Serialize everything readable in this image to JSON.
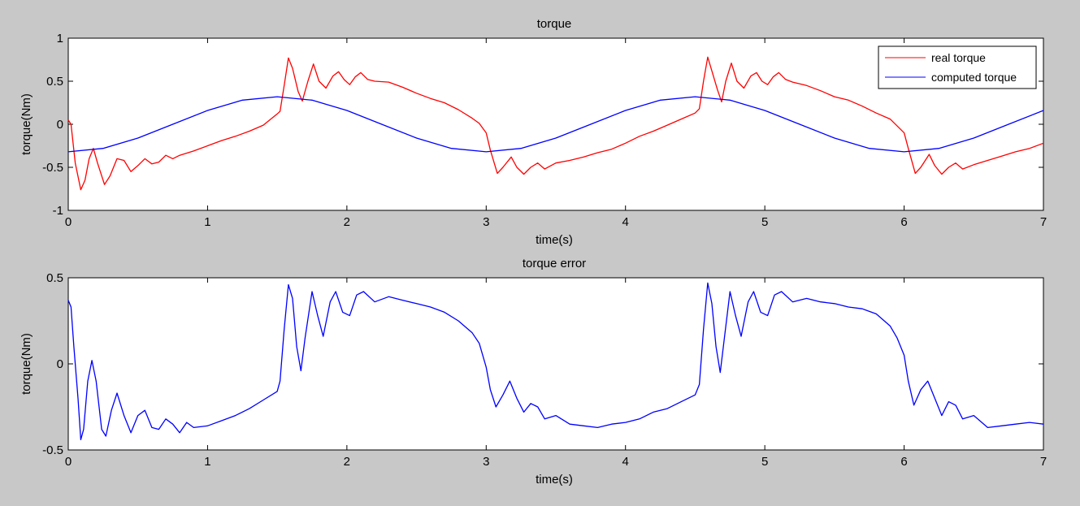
{
  "figure": {
    "background": "#c8c8c8"
  },
  "chart_data": [
    {
      "type": "line",
      "title": "torque",
      "xlabel": "time(s)",
      "ylabel": "torque(Nm)",
      "xlim": [
        0,
        7
      ],
      "ylim": [
        -1,
        1
      ],
      "xticks": [
        0,
        1,
        2,
        3,
        4,
        5,
        6,
        7
      ],
      "yticks": [
        -1,
        -0.5,
        0,
        0.5,
        1
      ],
      "xtick_labels": [
        "0",
        "1",
        "2",
        "3",
        "4",
        "5",
        "6",
        "7"
      ],
      "ytick_labels": [
        "-1",
        "-0.5",
        "0",
        "0.5",
        "1"
      ],
      "grid": false,
      "legend_position": "top-right",
      "series": [
        {
          "name": "real torque",
          "color": "#ff0000",
          "points": [
            [
              0,
              0.05
            ],
            [
              0.02,
              0.0
            ],
            [
              0.05,
              -0.45
            ],
            [
              0.09,
              -0.76
            ],
            [
              0.12,
              -0.65
            ],
            [
              0.15,
              -0.4
            ],
            [
              0.18,
              -0.28
            ],
            [
              0.21,
              -0.45
            ],
            [
              0.26,
              -0.7
            ],
            [
              0.3,
              -0.6
            ],
            [
              0.35,
              -0.4
            ],
            [
              0.4,
              -0.42
            ],
            [
              0.45,
              -0.55
            ],
            [
              0.5,
              -0.48
            ],
            [
              0.55,
              -0.4
            ],
            [
              0.6,
              -0.46
            ],
            [
              0.65,
              -0.44
            ],
            [
              0.7,
              -0.36
            ],
            [
              0.75,
              -0.4
            ],
            [
              0.8,
              -0.36
            ],
            [
              0.9,
              -0.31
            ],
            [
              1.0,
              -0.25
            ],
            [
              1.1,
              -0.19
            ],
            [
              1.2,
              -0.14
            ],
            [
              1.3,
              -0.08
            ],
            [
              1.4,
              -0.01
            ],
            [
              1.5,
              0.12
            ],
            [
              1.52,
              0.15
            ],
            [
              1.55,
              0.45
            ],
            [
              1.58,
              0.77
            ],
            [
              1.61,
              0.65
            ],
            [
              1.65,
              0.38
            ],
            [
              1.68,
              0.27
            ],
            [
              1.72,
              0.5
            ],
            [
              1.76,
              0.7
            ],
            [
              1.8,
              0.5
            ],
            [
              1.85,
              0.42
            ],
            [
              1.9,
              0.56
            ],
            [
              1.94,
              0.61
            ],
            [
              1.98,
              0.52
            ],
            [
              2.02,
              0.46
            ],
            [
              2.06,
              0.55
            ],
            [
              2.1,
              0.6
            ],
            [
              2.15,
              0.52
            ],
            [
              2.2,
              0.5
            ],
            [
              2.3,
              0.49
            ],
            [
              2.4,
              0.43
            ],
            [
              2.5,
              0.36
            ],
            [
              2.6,
              0.3
            ],
            [
              2.7,
              0.25
            ],
            [
              2.8,
              0.17
            ],
            [
              2.9,
              0.07
            ],
            [
              2.95,
              0.01
            ],
            [
              3.0,
              -0.1
            ],
            [
              3.03,
              -0.3
            ],
            [
              3.08,
              -0.57
            ],
            [
              3.12,
              -0.5
            ],
            [
              3.18,
              -0.38
            ],
            [
              3.22,
              -0.5
            ],
            [
              3.27,
              -0.58
            ],
            [
              3.32,
              -0.5
            ],
            [
              3.37,
              -0.45
            ],
            [
              3.42,
              -0.52
            ],
            [
              3.5,
              -0.45
            ],
            [
              3.6,
              -0.42
            ],
            [
              3.7,
              -0.38
            ],
            [
              3.8,
              -0.33
            ],
            [
              3.9,
              -0.29
            ],
            [
              4.0,
              -0.22
            ],
            [
              4.1,
              -0.14
            ],
            [
              4.2,
              -0.08
            ],
            [
              4.3,
              -0.01
            ],
            [
              4.4,
              0.06
            ],
            [
              4.5,
              0.13
            ],
            [
              4.53,
              0.18
            ],
            [
              4.56,
              0.5
            ],
            [
              4.59,
              0.78
            ],
            [
              4.62,
              0.62
            ],
            [
              4.66,
              0.4
            ],
            [
              4.69,
              0.26
            ],
            [
              4.72,
              0.5
            ],
            [
              4.76,
              0.71
            ],
            [
              4.8,
              0.5
            ],
            [
              4.85,
              0.42
            ],
            [
              4.9,
              0.56
            ],
            [
              4.94,
              0.6
            ],
            [
              4.98,
              0.5
            ],
            [
              5.02,
              0.46
            ],
            [
              5.06,
              0.55
            ],
            [
              5.1,
              0.6
            ],
            [
              5.15,
              0.52
            ],
            [
              5.2,
              0.49
            ],
            [
              5.3,
              0.45
            ],
            [
              5.4,
              0.39
            ],
            [
              5.5,
              0.32
            ],
            [
              5.6,
              0.28
            ],
            [
              5.7,
              0.21
            ],
            [
              5.8,
              0.13
            ],
            [
              5.9,
              0.06
            ],
            [
              5.95,
              -0.02
            ],
            [
              6.0,
              -0.1
            ],
            [
              6.03,
              -0.28
            ],
            [
              6.08,
              -0.57
            ],
            [
              6.12,
              -0.5
            ],
            [
              6.18,
              -0.35
            ],
            [
              6.22,
              -0.48
            ],
            [
              6.27,
              -0.58
            ],
            [
              6.32,
              -0.5
            ],
            [
              6.37,
              -0.45
            ],
            [
              6.42,
              -0.52
            ],
            [
              6.5,
              -0.47
            ],
            [
              6.6,
              -0.42
            ],
            [
              6.7,
              -0.37
            ],
            [
              6.8,
              -0.32
            ],
            [
              6.9,
              -0.28
            ],
            [
              7.0,
              -0.22
            ]
          ]
        },
        {
          "name": "computed torque",
          "color": "#0000ff",
          "points": [
            [
              0,
              -0.32
            ],
            [
              0.25,
              -0.28
            ],
            [
              0.5,
              -0.16
            ],
            [
              0.75,
              0.0
            ],
            [
              1.0,
              0.16
            ],
            [
              1.25,
              0.28
            ],
            [
              1.5,
              0.32
            ],
            [
              1.75,
              0.28
            ],
            [
              2.0,
              0.16
            ],
            [
              2.25,
              0.0
            ],
            [
              2.5,
              -0.16
            ],
            [
              2.75,
              -0.28
            ],
            [
              3.0,
              -0.32
            ],
            [
              3.25,
              -0.28
            ],
            [
              3.5,
              -0.16
            ],
            [
              3.75,
              0.0
            ],
            [
              4.0,
              0.16
            ],
            [
              4.25,
              0.28
            ],
            [
              4.5,
              0.32
            ],
            [
              4.75,
              0.28
            ],
            [
              5.0,
              0.16
            ],
            [
              5.25,
              0.0
            ],
            [
              5.5,
              -0.16
            ],
            [
              5.75,
              -0.28
            ],
            [
              6.0,
              -0.32
            ],
            [
              6.25,
              -0.28
            ],
            [
              6.5,
              -0.16
            ],
            [
              6.75,
              0.0
            ],
            [
              7.0,
              0.16
            ]
          ]
        }
      ]
    },
    {
      "type": "line",
      "title": "torque error",
      "xlabel": "time(s)",
      "ylabel": "torque(Nm)",
      "xlim": [
        0,
        7
      ],
      "ylim": [
        -0.5,
        0.5
      ],
      "xticks": [
        0,
        1,
        2,
        3,
        4,
        5,
        6,
        7
      ],
      "yticks": [
        -0.5,
        0,
        0.5
      ],
      "xtick_labels": [
        "0",
        "1",
        "2",
        "3",
        "4",
        "5",
        "6",
        "7"
      ],
      "ytick_labels": [
        "-0.5",
        "0",
        "0.5"
      ],
      "grid": false,
      "series": [
        {
          "color": "#0000ff",
          "points": [
            [
              0,
              0.37
            ],
            [
              0.02,
              0.33
            ],
            [
              0.04,
              0.1
            ],
            [
              0.07,
              -0.2
            ],
            [
              0.09,
              -0.44
            ],
            [
              0.11,
              -0.38
            ],
            [
              0.14,
              -0.1
            ],
            [
              0.17,
              0.02
            ],
            [
              0.2,
              -0.1
            ],
            [
              0.24,
              -0.38
            ],
            [
              0.27,
              -0.42
            ],
            [
              0.31,
              -0.27
            ],
            [
              0.35,
              -0.17
            ],
            [
              0.4,
              -0.3
            ],
            [
              0.45,
              -0.4
            ],
            [
              0.5,
              -0.3
            ],
            [
              0.55,
              -0.27
            ],
            [
              0.6,
              -0.37
            ],
            [
              0.65,
              -0.38
            ],
            [
              0.7,
              -0.32
            ],
            [
              0.75,
              -0.35
            ],
            [
              0.8,
              -0.4
            ],
            [
              0.85,
              -0.34
            ],
            [
              0.9,
              -0.37
            ],
            [
              1.0,
              -0.36
            ],
            [
              1.1,
              -0.33
            ],
            [
              1.2,
              -0.3
            ],
            [
              1.3,
              -0.26
            ],
            [
              1.4,
              -0.21
            ],
            [
              1.5,
              -0.16
            ],
            [
              1.52,
              -0.1
            ],
            [
              1.55,
              0.2
            ],
            [
              1.58,
              0.46
            ],
            [
              1.61,
              0.38
            ],
            [
              1.64,
              0.1
            ],
            [
              1.67,
              -0.04
            ],
            [
              1.7,
              0.15
            ],
            [
              1.75,
              0.42
            ],
            [
              1.79,
              0.28
            ],
            [
              1.83,
              0.16
            ],
            [
              1.88,
              0.36
            ],
            [
              1.92,
              0.42
            ],
            [
              1.97,
              0.3
            ],
            [
              2.02,
              0.28
            ],
            [
              2.07,
              0.4
            ],
            [
              2.12,
              0.42
            ],
            [
              2.2,
              0.36
            ],
            [
              2.3,
              0.39
            ],
            [
              2.4,
              0.37
            ],
            [
              2.5,
              0.35
            ],
            [
              2.6,
              0.33
            ],
            [
              2.7,
              0.3
            ],
            [
              2.8,
              0.25
            ],
            [
              2.9,
              0.18
            ],
            [
              2.95,
              0.12
            ],
            [
              3.0,
              -0.02
            ],
            [
              3.03,
              -0.15
            ],
            [
              3.07,
              -0.25
            ],
            [
              3.12,
              -0.18
            ],
            [
              3.17,
              -0.1
            ],
            [
              3.22,
              -0.2
            ],
            [
              3.27,
              -0.28
            ],
            [
              3.32,
              -0.23
            ],
            [
              3.37,
              -0.25
            ],
            [
              3.42,
              -0.32
            ],
            [
              3.5,
              -0.3
            ],
            [
              3.6,
              -0.35
            ],
            [
              3.7,
              -0.36
            ],
            [
              3.8,
              -0.37
            ],
            [
              3.9,
              -0.35
            ],
            [
              4.0,
              -0.34
            ],
            [
              4.1,
              -0.32
            ],
            [
              4.2,
              -0.28
            ],
            [
              4.3,
              -0.26
            ],
            [
              4.4,
              -0.22
            ],
            [
              4.5,
              -0.18
            ],
            [
              4.53,
              -0.12
            ],
            [
              4.56,
              0.2
            ],
            [
              4.59,
              0.47
            ],
            [
              4.62,
              0.35
            ],
            [
              4.65,
              0.1
            ],
            [
              4.68,
              -0.05
            ],
            [
              4.71,
              0.15
            ],
            [
              4.75,
              0.42
            ],
            [
              4.79,
              0.28
            ],
            [
              4.83,
              0.16
            ],
            [
              4.88,
              0.36
            ],
            [
              4.92,
              0.42
            ],
            [
              4.97,
              0.3
            ],
            [
              5.02,
              0.28
            ],
            [
              5.07,
              0.4
            ],
            [
              5.12,
              0.42
            ],
            [
              5.2,
              0.36
            ],
            [
              5.3,
              0.38
            ],
            [
              5.4,
              0.36
            ],
            [
              5.5,
              0.35
            ],
            [
              5.6,
              0.33
            ],
            [
              5.7,
              0.32
            ],
            [
              5.8,
              0.29
            ],
            [
              5.9,
              0.22
            ],
            [
              5.95,
              0.15
            ],
            [
              6.0,
              0.05
            ],
            [
              6.03,
              -0.1
            ],
            [
              6.07,
              -0.24
            ],
            [
              6.12,
              -0.15
            ],
            [
              6.17,
              -0.1
            ],
            [
              6.22,
              -0.2
            ],
            [
              6.27,
              -0.3
            ],
            [
              6.32,
              -0.22
            ],
            [
              6.37,
              -0.24
            ],
            [
              6.42,
              -0.32
            ],
            [
              6.5,
              -0.3
            ],
            [
              6.6,
              -0.37
            ],
            [
              6.7,
              -0.36
            ],
            [
              6.8,
              -0.35
            ],
            [
              6.9,
              -0.34
            ],
            [
              7.0,
              -0.35
            ]
          ]
        }
      ]
    }
  ]
}
